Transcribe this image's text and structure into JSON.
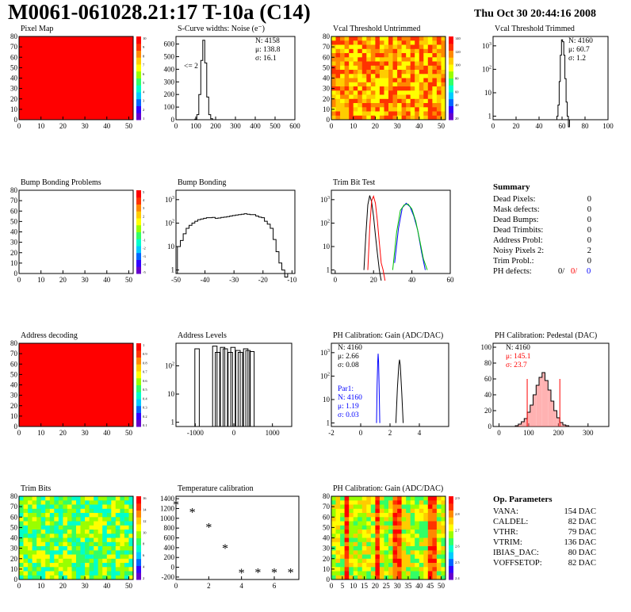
{
  "header": {
    "title": "M0061-061028.21:17 T-10a (C14)",
    "date": "Thu Oct 30 20:44:16 2008"
  },
  "colors": {
    "red": "#ff0000",
    "blue": "#0000ff",
    "green": "#00c000",
    "black": "#000000",
    "palette": [
      "#6600cc",
      "#3300ff",
      "#0066ff",
      "#00ccff",
      "#00ffcc",
      "#33ff66",
      "#99ff00",
      "#ffff00",
      "#ffcc00",
      "#ff8800",
      "#ff3300",
      "#ff0000"
    ]
  },
  "chart_data": [
    {
      "id": "pixel-map",
      "type": "heatmap",
      "title": "Pixel Map",
      "xticks": [
        "0",
        "10",
        "20",
        "30",
        "40",
        "50"
      ],
      "yticks": [
        "0",
        "10",
        "20",
        "30",
        "40",
        "50",
        "60",
        "70",
        "80"
      ],
      "xlim": [
        0,
        52
      ],
      "ylim": [
        0,
        80
      ],
      "fill": "uniform-red",
      "zlabels": [
        "10",
        "9",
        "8",
        "7",
        "6",
        "5",
        "4",
        "3",
        "2",
        "1"
      ]
    },
    {
      "id": "scurve",
      "type": "bar",
      "title": "S-Curve widths: Noise (e⁻)",
      "xticks": [
        "0",
        "100",
        "200",
        "300",
        "400",
        "500",
        "600"
      ],
      "yticks": [
        "0",
        "100",
        "200",
        "300",
        "400",
        "500",
        "600"
      ],
      "xlim": [
        0,
        600
      ],
      "ylim": [
        0,
        660
      ],
      "stats": [
        "N: 4158",
        "μ: 138.8",
        "σ: 16.1"
      ],
      "annotation": "<= 2",
      "x": [
        100,
        110,
        120,
        130,
        140,
        150,
        160,
        170,
        180,
        190
      ],
      "values": [
        5,
        40,
        200,
        470,
        630,
        450,
        180,
        40,
        8,
        0
      ]
    },
    {
      "id": "vcal-untrimmed",
      "type": "heatmap",
      "title": "Vcal Threshold Untrimmed",
      "xticks": [
        "0",
        "10",
        "20",
        "30",
        "40",
        "50"
      ],
      "yticks": [
        "0",
        "10",
        "20",
        "30",
        "40",
        "50",
        "60",
        "70",
        "80"
      ],
      "xlim": [
        0,
        52
      ],
      "ylim": [
        0,
        80
      ],
      "fill": "noise-orange",
      "zlabels": [
        "140",
        "120",
        "100",
        "80",
        "60",
        "40",
        "20"
      ]
    },
    {
      "id": "vcal-trimmed",
      "type": "bar",
      "title": "Vcal Threshold Trimmed",
      "log": true,
      "xticks": [
        "0",
        "20",
        "40",
        "60",
        "80",
        "100"
      ],
      "yticks": [
        "1",
        "10",
        "10²",
        "10³"
      ],
      "xlim": [
        0,
        100
      ],
      "stats": [
        "N: 4160",
        "μ: 60.7",
        "σ:  1.2"
      ],
      "x": [
        56,
        57,
        58,
        59,
        60,
        61,
        62,
        63,
        64,
        65,
        66
      ],
      "values": [
        1,
        3,
        30,
        400,
        1800,
        1500,
        400,
        40,
        4,
        1,
        0
      ]
    },
    {
      "id": "bump-problems",
      "type": "heatmap",
      "title": "Bump Bonding Problems",
      "xticks": [
        "0",
        "10",
        "20",
        "30",
        "40",
        "50"
      ],
      "yticks": [
        "0",
        "10",
        "20",
        "30",
        "40",
        "50",
        "60",
        "70",
        "80"
      ],
      "xlim": [
        0,
        52
      ],
      "ylim": [
        0,
        80
      ],
      "fill": "empty",
      "zlabels": [
        "5",
        "4",
        "3",
        "2",
        "1",
        "0",
        "-1",
        "-2",
        "-3",
        "-4",
        "-5"
      ]
    },
    {
      "id": "bump-bonding",
      "type": "bar",
      "title": "Bump Bonding",
      "log": true,
      "xticks": [
        "-50",
        "-40",
        "-30",
        "-20",
        "-10"
      ],
      "yticks": [
        "1",
        "10",
        "10²",
        "10³"
      ],
      "xlim": [
        -50,
        -9
      ],
      "x": [
        -49,
        -48,
        -47,
        -46,
        -45,
        -44,
        -43,
        -42,
        -41,
        -40,
        -39,
        -38,
        -37,
        -36,
        -35,
        -34,
        -33,
        -32,
        -31,
        -30,
        -29,
        -28,
        -27,
        -26,
        -25,
        -24,
        -23,
        -22,
        -21,
        -20,
        -19,
        -18,
        -17,
        -16,
        -15,
        -14,
        -13,
        -12
      ],
      "values": [
        10,
        18,
        35,
        60,
        80,
        100,
        120,
        140,
        150,
        160,
        170,
        170,
        175,
        160,
        165,
        175,
        180,
        190,
        200,
        210,
        220,
        230,
        240,
        250,
        240,
        230,
        230,
        200,
        180,
        170,
        120,
        90,
        60,
        20,
        6,
        2,
        1,
        0.5
      ]
    },
    {
      "id": "trim-bit-test",
      "type": "line",
      "title": "Trim Bit Test",
      "log": true,
      "xticks": [
        "0",
        "20",
        "40",
        "60"
      ],
      "yticks": [
        "1",
        "10",
        "10²",
        "10³"
      ],
      "xlim": [
        -2,
        60
      ],
      "series": [
        {
          "color": "#000000",
          "x": [
            15,
            16,
            17,
            18,
            19,
            20,
            21,
            22,
            23,
            24
          ],
          "values": [
            1,
            30,
            600,
            1500,
            800,
            200,
            30,
            5,
            1,
            0
          ]
        },
        {
          "color": "#ff0000",
          "x": [
            17,
            18,
            19,
            20,
            21,
            22,
            23,
            24,
            25,
            26
          ],
          "values": [
            1,
            60,
            900,
            1400,
            700,
            120,
            15,
            2,
            1,
            0
          ]
        },
        {
          "color": "#0000ff",
          "x": [
            31,
            33,
            35,
            37,
            39,
            41,
            43,
            45,
            47
          ],
          "values": [
            2,
            60,
            450,
            700,
            500,
            200,
            50,
            6,
            1
          ]
        },
        {
          "color": "#00c000",
          "x": [
            30,
            32,
            34,
            36,
            38,
            40,
            42,
            44,
            46,
            48
          ],
          "values": [
            1,
            40,
            350,
            600,
            650,
            400,
            120,
            20,
            3,
            1
          ]
        }
      ]
    },
    {
      "id": "address-decoding",
      "type": "heatmap",
      "title": "Address decoding",
      "xticks": [
        "0",
        "10",
        "20",
        "30",
        "40",
        "50"
      ],
      "yticks": [
        "0",
        "10",
        "20",
        "30",
        "40",
        "50",
        "60",
        "70",
        "80"
      ],
      "xlim": [
        0,
        52
      ],
      "ylim": [
        0,
        80
      ],
      "fill": "uniform-red",
      "zlabels": [
        "1",
        "0.9",
        "0.8",
        "0.7",
        "0.6",
        "0.5",
        "0.4",
        "0.3",
        "0.2",
        "0.1"
      ]
    },
    {
      "id": "address-levels",
      "type": "bar",
      "title": "Address Levels",
      "log": true,
      "xticks": [
        "-1000",
        "0",
        "1000"
      ],
      "yticks": [
        "1",
        "10",
        "10²"
      ],
      "xlim": [
        -1500,
        1500
      ],
      "x": [
        -780,
        -320,
        -250,
        -120,
        -50,
        80,
        150,
        280,
        340,
        480,
        540,
        640
      ],
      "values": [
        400,
        500,
        300,
        450,
        400,
        300,
        450,
        350,
        300,
        400,
        350,
        320
      ]
    },
    {
      "id": "ph-gain",
      "type": "line",
      "title": "PH Calibration: Gain (ADC/DAC)",
      "log": true,
      "xticks": [
        "-2",
        "0",
        "2",
        "4"
      ],
      "yticks": [
        "1",
        "10",
        "10²",
        "10³"
      ],
      "xlim": [
        -2,
        6
      ],
      "stats": [
        "N: 4160",
        "μ: 2.66",
        "σ: 0.08"
      ],
      "stats2": [
        "Par1:",
        "N: 4160",
        "μ: 1.19",
        "σ: 0.03"
      ],
      "series": [
        {
          "color": "#000000",
          "x": [
            2.4,
            2.5,
            2.6,
            2.65,
            2.7,
            2.8,
            2.9
          ],
          "values": [
            1,
            30,
            300,
            500,
            300,
            20,
            1
          ]
        },
        {
          "color": "#0000ff",
          "x": [
            1.08,
            1.12,
            1.16,
            1.19,
            1.22,
            1.26,
            1.3
          ],
          "values": [
            1,
            40,
            400,
            900,
            400,
            30,
            1
          ]
        }
      ]
    },
    {
      "id": "ph-pedestal",
      "type": "bar",
      "title": "PH Calibration: Pedestal (DAC)",
      "xticks": [
        "0",
        "100",
        "200",
        "300"
      ],
      "yticks": [
        "0",
        "20",
        "40",
        "60",
        "80",
        "100"
      ],
      "xlim": [
        -20,
        370
      ],
      "ylim": [
        0,
        105
      ],
      "stats": [
        "N: 4160",
        "μ: 145.1",
        "σ: 23.7"
      ],
      "x": [
        60,
        70,
        80,
        90,
        100,
        110,
        120,
        130,
        140,
        150,
        160,
        170,
        180,
        190,
        200,
        210,
        220,
        230
      ],
      "values": [
        1,
        3,
        6,
        10,
        18,
        27,
        40,
        52,
        62,
        68,
        58,
        46,
        32,
        20,
        11,
        5,
        2,
        1
      ]
    },
    {
      "id": "trim-bits",
      "type": "heatmap",
      "title": "Trim Bits",
      "xticks": [
        "0",
        "10",
        "20",
        "30",
        "40",
        "50"
      ],
      "yticks": [
        "0",
        "10",
        "20",
        "30",
        "40",
        "50",
        "60",
        "70",
        "80"
      ],
      "xlim": [
        0,
        52
      ],
      "ylim": [
        0,
        80
      ],
      "fill": "noise-green",
      "zlabels": [
        "16",
        "14",
        "12",
        "10",
        "8",
        "6",
        "4",
        "2"
      ]
    },
    {
      "id": "temperature",
      "type": "scatter",
      "title": "Temperature calibration",
      "xticks": [
        "0",
        "2",
        "4",
        "6"
      ],
      "yticks": [
        "-200",
        "0",
        "200",
        "400",
        "600",
        "800",
        "1000",
        "1200",
        "1400"
      ],
      "xlim": [
        0,
        7.5
      ],
      "ylim": [
        -250,
        1450
      ],
      "x": [
        0,
        1,
        2,
        3,
        4,
        5,
        6,
        7
      ],
      "values": [
        1270,
        1120,
        810,
        380,
        -120,
        -110,
        -110,
        -110
      ]
    },
    {
      "id": "ph-gain-map",
      "type": "heatmap",
      "title": "PH Calibration: Gain (ADC/DAC)",
      "xticks": [
        "0",
        "5",
        "10",
        "15",
        "20",
        "25",
        "30",
        "35",
        "40",
        "45",
        "50"
      ],
      "yticks": [
        "0",
        "10",
        "20",
        "30",
        "40",
        "50",
        "60",
        "70",
        "80"
      ],
      "xlim": [
        0,
        52
      ],
      "ylim": [
        0,
        80
      ],
      "fill": "stripes",
      "zlabels": [
        "2.9",
        "2.8",
        "2.7",
        "2.6",
        "2.5",
        "2.4"
      ]
    }
  ],
  "summary": {
    "title": "Summary",
    "rows": [
      {
        "label": "Dead Pixels:",
        "value": "0"
      },
      {
        "label": "Mask defects:",
        "value": "0"
      },
      {
        "label": "Dead Bumps:",
        "value": "0"
      },
      {
        "label": "Dead Trimbits:",
        "value": "0"
      },
      {
        "label": "Address Probl:",
        "value": "0"
      },
      {
        "label": "Noisy Pixels 2:",
        "value": "2"
      },
      {
        "label": "Trim Probl.:",
        "value": "0"
      }
    ],
    "ph_label": "PH defects:",
    "ph_values": [
      "0/",
      "0/",
      "0"
    ]
  },
  "op_params": {
    "title": "Op. Parameters",
    "rows": [
      {
        "label": "VANA:",
        "value": "154 DAC"
      },
      {
        "label": "CALDEL:",
        "value": "82 DAC"
      },
      {
        "label": "VTHR:",
        "value": "79 DAC"
      },
      {
        "label": "VTRIM:",
        "value": "136 DAC"
      },
      {
        "label": "IBIAS_DAC:",
        "value": "80 DAC"
      },
      {
        "label": "VOFFSETOP:",
        "value": "82 DAC"
      }
    ]
  }
}
